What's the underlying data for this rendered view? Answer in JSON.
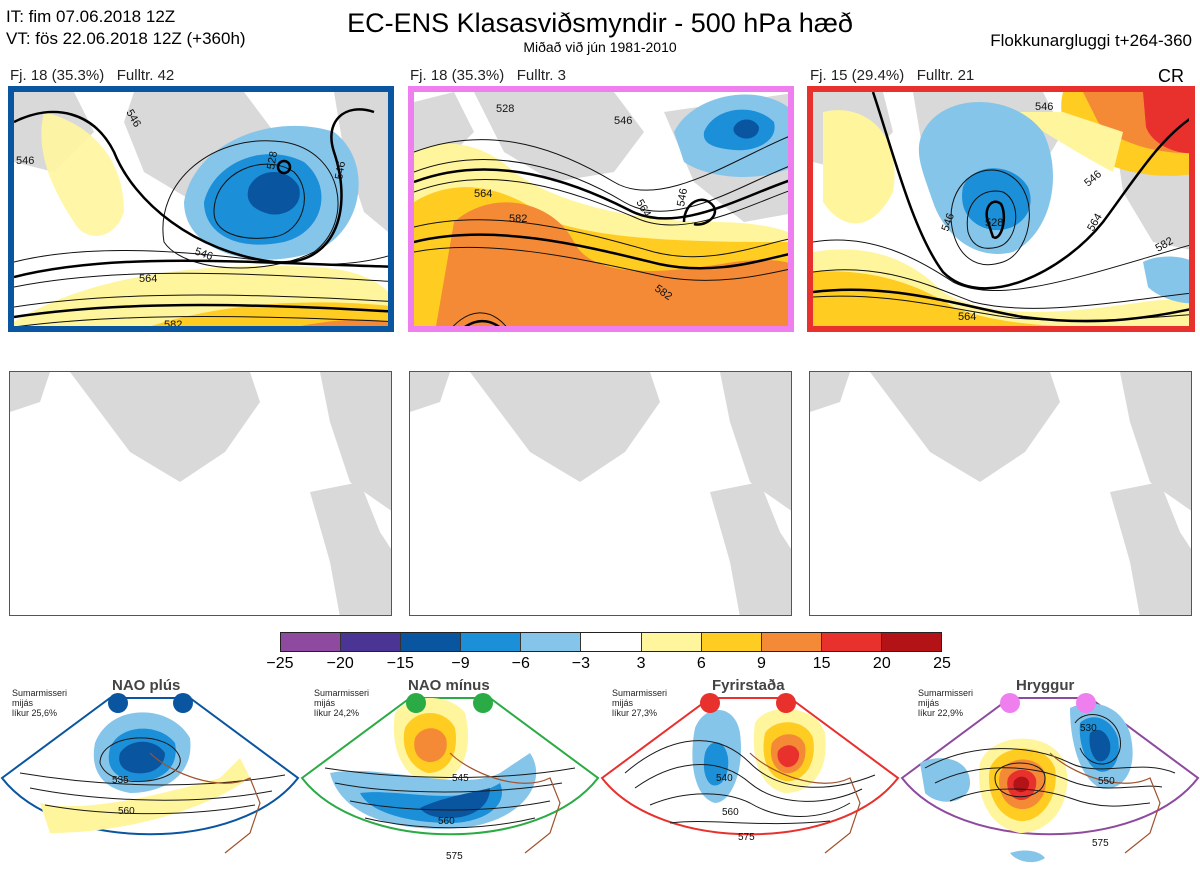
{
  "header": {
    "it_line": "IT: fim 07.06.2018 12Z",
    "vt_line": "VT: fös 22.06.2018 12Z  (+360h)",
    "title": "EC-ENS Klasasviðsmyndir - 500 hPa hæð",
    "subtitle": "Miðað við jún 1981-2010",
    "window": "Flokkunargluggi t+264-360",
    "cr": "CR"
  },
  "panels": [
    {
      "label_fj": "Fj. 18 (35.3%)",
      "label_full": "Fulltr. 42",
      "border_color": "#0a55a0",
      "contours": [
        "546",
        "564",
        "582",
        "546",
        "582",
        "546",
        "546",
        "528"
      ]
    },
    {
      "label_fj": "Fj. 18 (35.3%)",
      "label_full": "Fulltr. 3",
      "border_color": "#ef7fef",
      "contours": [
        "528",
        "546",
        "564",
        "582",
        "564",
        "546",
        "582"
      ]
    },
    {
      "label_fj": "Fj. 15 (29.4%)",
      "label_full": "Fulltr. 21",
      "border_color": "#e8302d",
      "contours": [
        "546",
        "546",
        "528",
        "546",
        "564",
        "582",
        "564",
        "582"
      ]
    }
  ],
  "colorbar": {
    "colors": [
      "#8e4a9e",
      "#4a3595",
      "#0a55a0",
      "#1b8fd8",
      "#86c5ea",
      "#ffffff",
      "#fff59d",
      "#ffcc22",
      "#f48a36",
      "#e8302d",
      "#b31217"
    ],
    "ticks": [
      "−25",
      "−20",
      "−15",
      "−9",
      "−6",
      "−3",
      "3",
      "6",
      "9",
      "15",
      "20",
      "25"
    ]
  },
  "regimes": [
    {
      "title": "NAO plús",
      "info": [
        "Sumarmisseri",
        "mijás",
        "líkur 25,6%"
      ],
      "color": "#0a55a0",
      "labels": [
        "535",
        "560"
      ]
    },
    {
      "title": "NAO mínus",
      "info": [
        "Sumarmisseri",
        "mijás",
        "líkur 24,2%"
      ],
      "color": "#2bab45",
      "labels": [
        "545",
        "560",
        "575"
      ]
    },
    {
      "title": "Fyrirstaða",
      "info": [
        "Sumarmisseri",
        "mijás",
        "líkur 27,3%"
      ],
      "color": "#e8302d",
      "labels": [
        "540",
        "560",
        "575"
      ]
    },
    {
      "title": "Hryggur",
      "info": [
        "Sumarmisseri",
        "mijás",
        "líkur 22,9%"
      ],
      "color": "#ef7fef",
      "labels": [
        "530",
        "550",
        "575"
      ]
    }
  ]
}
